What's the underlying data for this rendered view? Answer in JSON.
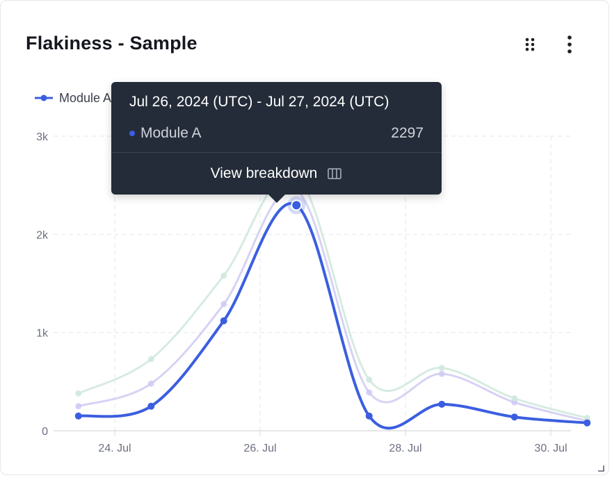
{
  "widget": {
    "title": "Flakiness - Sample"
  },
  "legend": {
    "label": "Module A",
    "icon": "line-with-dot"
  },
  "tooltip": {
    "date_range": "Jul 26, 2024 (UTC) - Jul 27, 2024 (UTC)",
    "series_name": "Module A",
    "value": "2297",
    "action_label": "View breakdown",
    "action_icon": "columns-icon"
  },
  "colors": {
    "series_main": "#3b5ee0",
    "series_faded_1": "#cfcaf2",
    "series_faded_2": "#cfe8dc",
    "tooltip_bg": "#242c39"
  },
  "chart_data": {
    "type": "line",
    "x": [
      "2024-07-23T12:00",
      "2024-07-24T12:00",
      "2024-07-25T12:00",
      "2024-07-26T12:00",
      "2024-07-27T12:00",
      "2024-07-28T12:00",
      "2024-07-29T12:00",
      "2024-07-30T12:00"
    ],
    "x_ticks": [
      "24. Jul",
      "26. Jul",
      "28. Jul",
      "30. Jul"
    ],
    "y_ticks": [
      "0",
      "1k",
      "2k",
      "3k"
    ],
    "ylim": [
      0,
      3000
    ],
    "grid": true,
    "legend_position": "top-left",
    "highlighted_point_index": 3,
    "series": [
      {
        "name": "Module A",
        "values": [
          150,
          250,
          1120,
          2297,
          150,
          270,
          140,
          80
        ],
        "style": "active"
      },
      {
        "values": [
          250,
          480,
          1290,
          2450,
          390,
          580,
          290,
          100
        ],
        "style": "faded"
      },
      {
        "values": [
          380,
          730,
          1580,
          2600,
          520,
          640,
          330,
          130
        ],
        "style": "faded"
      }
    ],
    "title": "Flakiness - Sample",
    "xlabel": "",
    "ylabel": ""
  }
}
